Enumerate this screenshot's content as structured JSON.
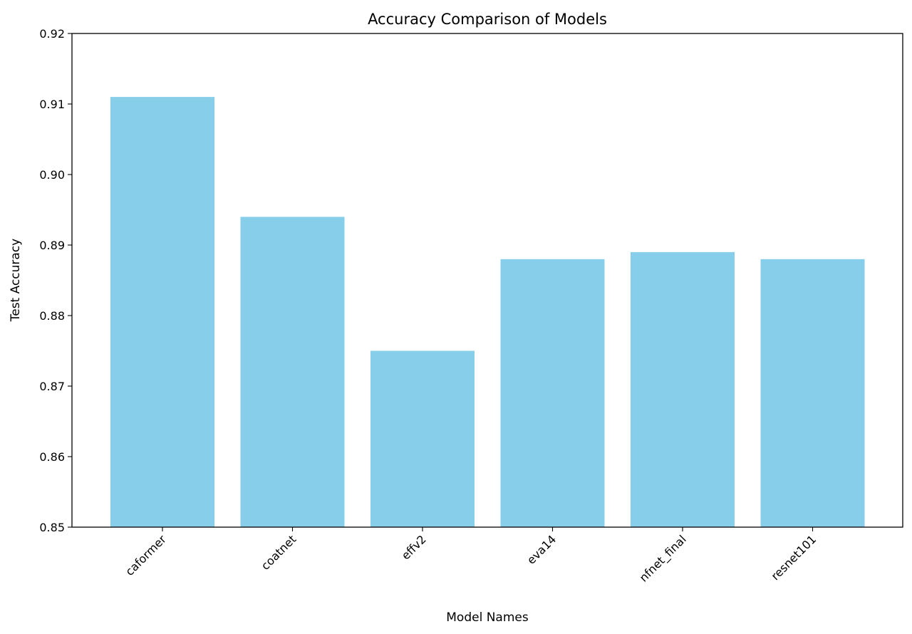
{
  "chart_data": {
    "type": "bar",
    "title": "Accuracy Comparison of Models",
    "xlabel": "Model Names",
    "ylabel": "Test Accuracy",
    "categories": [
      "caformer",
      "coatnet",
      "effv2",
      "eva14",
      "nfnet_final",
      "resnet101"
    ],
    "values": [
      0.911,
      0.894,
      0.875,
      0.888,
      0.889,
      0.888
    ],
    "ylim": [
      0.85,
      0.92
    ],
    "yticks": [
      "0.85",
      "0.86",
      "0.87",
      "0.88",
      "0.89",
      "0.90",
      "0.91",
      "0.92"
    ],
    "grid": false,
    "bar_color": "#87CEEB",
    "xtick_rotation_deg": 45
  }
}
